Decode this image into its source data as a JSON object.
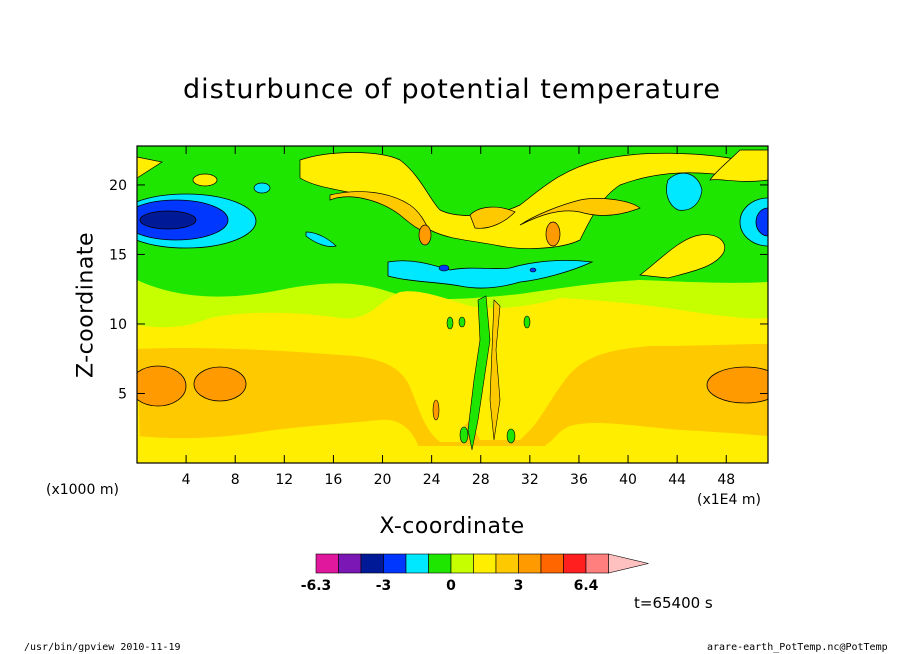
{
  "chart_data": {
    "type": "heatmap",
    "title": "disturbunce of potential temperature",
    "xlabel": "X-coordinate",
    "ylabel": "Z-coordinate",
    "x_unit_left": "(x1000 m)",
    "x_unit_right": "(x1E4 m)",
    "xlim": [
      0,
      51.4
    ],
    "ylim": [
      0,
      22.8
    ],
    "x_ticks": [
      4,
      8,
      12,
      16,
      20,
      24,
      28,
      32,
      36,
      40,
      44,
      48
    ],
    "y_ticks": [
      5,
      10,
      15,
      20
    ],
    "colorbar": {
      "levels": [
        -6.3,
        -5.2,
        -4.1,
        -3,
        -2,
        -1,
        0,
        1,
        2,
        3,
        4,
        5,
        6.4
      ],
      "colors": [
        "#e0189e",
        "#7b17b5",
        "#001a97",
        "#0037ff",
        "#00e8ff",
        "#1ee600",
        "#c6ff00",
        "#ffee00",
        "#ffc900",
        "#ff9a00",
        "#ff6600",
        "#ff1f1f",
        "#ff7e7e",
        "#ffc0c0"
      ],
      "tick_labels": [
        "-6.3",
        "-3",
        "0",
        "3",
        "6.4"
      ]
    },
    "time_label": "t=65400 s",
    "regions_description": "Layered field: warm orange bands at z~3-8 km, yellow layer z~8-14, green/cyan z~14-22, deep blue anomaly near x~0-8 z~17-18, oscillating plume centered near x~28."
  },
  "footer": {
    "left": "/usr/bin/gpview   2010-11-19",
    "right": "arare-earth_PotTemp.nc@PotTemp"
  }
}
